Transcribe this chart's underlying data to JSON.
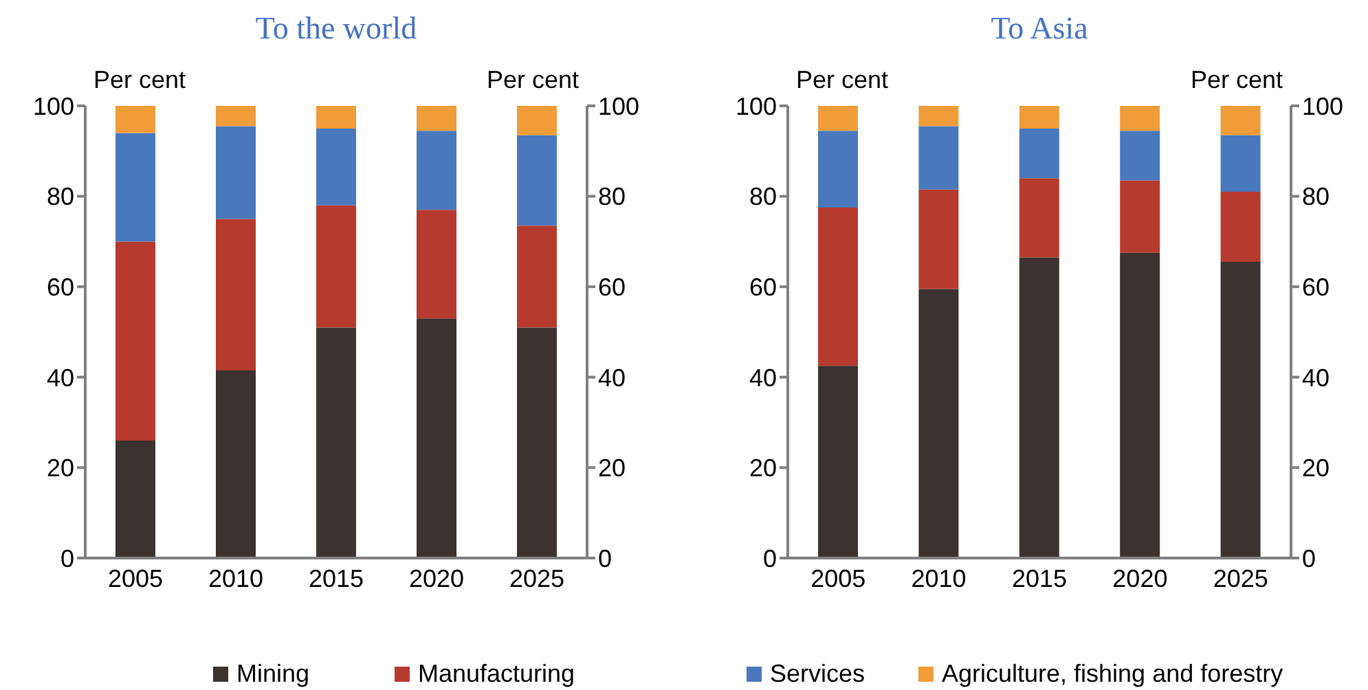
{
  "chart_data": [
    {
      "type": "bar",
      "title": "To the world",
      "ylabel": "Per cent",
      "y2label": "Per cent",
      "categories": [
        "2005",
        "2010",
        "2015",
        "2020",
        "2025"
      ],
      "stacked": true,
      "ylim": [
        0,
        100
      ],
      "yticks": [
        0,
        20,
        40,
        60,
        80,
        100
      ],
      "y2lim": [
        0,
        100
      ],
      "y2ticks": [
        0,
        20,
        40,
        60,
        80,
        100
      ],
      "grid": false,
      "legend": "bottom",
      "series": [
        {
          "name": "Mining",
          "color": "#3c3230",
          "values": [
            26,
            41.5,
            51,
            53,
            51
          ]
        },
        {
          "name": "Manufacturing",
          "color": "#b63a2e",
          "values": [
            44,
            33.5,
            27,
            24,
            22.5
          ]
        },
        {
          "name": "Services",
          "color": "#4a78bd",
          "values": [
            24,
            20.5,
            17,
            17.5,
            20
          ]
        },
        {
          "name": "Agriculture, fishing and forestry",
          "color": "#f09c38",
          "values": [
            6,
            4.5,
            5,
            5.5,
            6.5
          ]
        }
      ]
    },
    {
      "type": "bar",
      "title": "To Asia",
      "ylabel": "Per cent",
      "y2label": "Per cent",
      "categories": [
        "2005",
        "2010",
        "2015",
        "2020",
        "2025"
      ],
      "stacked": true,
      "ylim": [
        0,
        100
      ],
      "yticks": [
        0,
        20,
        40,
        60,
        80,
        100
      ],
      "y2lim": [
        0,
        100
      ],
      "y2ticks": [
        0,
        20,
        40,
        60,
        80,
        100
      ],
      "grid": false,
      "series": [
        {
          "color": "#3c3230",
          "values": [
            42.5,
            59.5,
            66.5,
            67.5,
            65.5
          ]
        },
        {
          "color": "#b63a2e",
          "values": [
            35,
            22,
            17.5,
            16,
            15.5
          ]
        },
        {
          "color": "#4a78bd",
          "values": [
            17,
            14,
            11,
            11,
            12.5
          ]
        },
        {
          "color": "#f09c38",
          "values": [
            5.5,
            4.5,
            5,
            5.5,
            6.5
          ]
        }
      ]
    }
  ]
}
